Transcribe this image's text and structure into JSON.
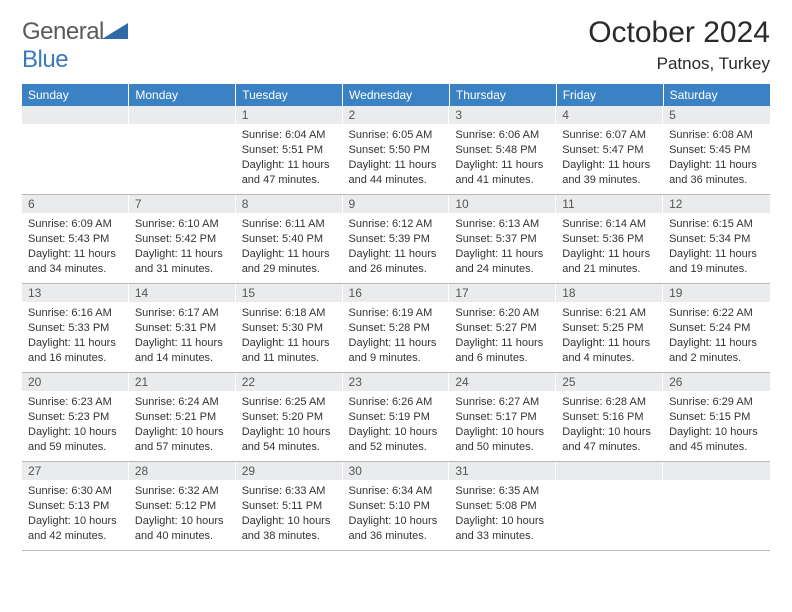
{
  "brand": {
    "part1": "General",
    "part2": "Blue"
  },
  "title": "October 2024",
  "location": "Patnos, Turkey",
  "colors": {
    "header_bg": "#3b82c4",
    "daynum_bg": "#e9ebed",
    "text": "#333333",
    "brand_gray": "#5a5a5a",
    "brand_blue": "#3a7ab8"
  },
  "weekdays": [
    "Sunday",
    "Monday",
    "Tuesday",
    "Wednesday",
    "Thursday",
    "Friday",
    "Saturday"
  ],
  "weeks": [
    [
      {
        "n": "",
        "lines": [
          "",
          "",
          "",
          ""
        ]
      },
      {
        "n": "",
        "lines": [
          "",
          "",
          "",
          ""
        ]
      },
      {
        "n": "1",
        "lines": [
          "Sunrise: 6:04 AM",
          "Sunset: 5:51 PM",
          "Daylight: 11 hours",
          "and 47 minutes."
        ]
      },
      {
        "n": "2",
        "lines": [
          "Sunrise: 6:05 AM",
          "Sunset: 5:50 PM",
          "Daylight: 11 hours",
          "and 44 minutes."
        ]
      },
      {
        "n": "3",
        "lines": [
          "Sunrise: 6:06 AM",
          "Sunset: 5:48 PM",
          "Daylight: 11 hours",
          "and 41 minutes."
        ]
      },
      {
        "n": "4",
        "lines": [
          "Sunrise: 6:07 AM",
          "Sunset: 5:47 PM",
          "Daylight: 11 hours",
          "and 39 minutes."
        ]
      },
      {
        "n": "5",
        "lines": [
          "Sunrise: 6:08 AM",
          "Sunset: 5:45 PM",
          "Daylight: 11 hours",
          "and 36 minutes."
        ]
      }
    ],
    [
      {
        "n": "6",
        "lines": [
          "Sunrise: 6:09 AM",
          "Sunset: 5:43 PM",
          "Daylight: 11 hours",
          "and 34 minutes."
        ]
      },
      {
        "n": "7",
        "lines": [
          "Sunrise: 6:10 AM",
          "Sunset: 5:42 PM",
          "Daylight: 11 hours",
          "and 31 minutes."
        ]
      },
      {
        "n": "8",
        "lines": [
          "Sunrise: 6:11 AM",
          "Sunset: 5:40 PM",
          "Daylight: 11 hours",
          "and 29 minutes."
        ]
      },
      {
        "n": "9",
        "lines": [
          "Sunrise: 6:12 AM",
          "Sunset: 5:39 PM",
          "Daylight: 11 hours",
          "and 26 minutes."
        ]
      },
      {
        "n": "10",
        "lines": [
          "Sunrise: 6:13 AM",
          "Sunset: 5:37 PM",
          "Daylight: 11 hours",
          "and 24 minutes."
        ]
      },
      {
        "n": "11",
        "lines": [
          "Sunrise: 6:14 AM",
          "Sunset: 5:36 PM",
          "Daylight: 11 hours",
          "and 21 minutes."
        ]
      },
      {
        "n": "12",
        "lines": [
          "Sunrise: 6:15 AM",
          "Sunset: 5:34 PM",
          "Daylight: 11 hours",
          "and 19 minutes."
        ]
      }
    ],
    [
      {
        "n": "13",
        "lines": [
          "Sunrise: 6:16 AM",
          "Sunset: 5:33 PM",
          "Daylight: 11 hours",
          "and 16 minutes."
        ]
      },
      {
        "n": "14",
        "lines": [
          "Sunrise: 6:17 AM",
          "Sunset: 5:31 PM",
          "Daylight: 11 hours",
          "and 14 minutes."
        ]
      },
      {
        "n": "15",
        "lines": [
          "Sunrise: 6:18 AM",
          "Sunset: 5:30 PM",
          "Daylight: 11 hours",
          "and 11 minutes."
        ]
      },
      {
        "n": "16",
        "lines": [
          "Sunrise: 6:19 AM",
          "Sunset: 5:28 PM",
          "Daylight: 11 hours",
          "and 9 minutes."
        ]
      },
      {
        "n": "17",
        "lines": [
          "Sunrise: 6:20 AM",
          "Sunset: 5:27 PM",
          "Daylight: 11 hours",
          "and 6 minutes."
        ]
      },
      {
        "n": "18",
        "lines": [
          "Sunrise: 6:21 AM",
          "Sunset: 5:25 PM",
          "Daylight: 11 hours",
          "and 4 minutes."
        ]
      },
      {
        "n": "19",
        "lines": [
          "Sunrise: 6:22 AM",
          "Sunset: 5:24 PM",
          "Daylight: 11 hours",
          "and 2 minutes."
        ]
      }
    ],
    [
      {
        "n": "20",
        "lines": [
          "Sunrise: 6:23 AM",
          "Sunset: 5:23 PM",
          "Daylight: 10 hours",
          "and 59 minutes."
        ]
      },
      {
        "n": "21",
        "lines": [
          "Sunrise: 6:24 AM",
          "Sunset: 5:21 PM",
          "Daylight: 10 hours",
          "and 57 minutes."
        ]
      },
      {
        "n": "22",
        "lines": [
          "Sunrise: 6:25 AM",
          "Sunset: 5:20 PM",
          "Daylight: 10 hours",
          "and 54 minutes."
        ]
      },
      {
        "n": "23",
        "lines": [
          "Sunrise: 6:26 AM",
          "Sunset: 5:19 PM",
          "Daylight: 10 hours",
          "and 52 minutes."
        ]
      },
      {
        "n": "24",
        "lines": [
          "Sunrise: 6:27 AM",
          "Sunset: 5:17 PM",
          "Daylight: 10 hours",
          "and 50 minutes."
        ]
      },
      {
        "n": "25",
        "lines": [
          "Sunrise: 6:28 AM",
          "Sunset: 5:16 PM",
          "Daylight: 10 hours",
          "and 47 minutes."
        ]
      },
      {
        "n": "26",
        "lines": [
          "Sunrise: 6:29 AM",
          "Sunset: 5:15 PM",
          "Daylight: 10 hours",
          "and 45 minutes."
        ]
      }
    ],
    [
      {
        "n": "27",
        "lines": [
          "Sunrise: 6:30 AM",
          "Sunset: 5:13 PM",
          "Daylight: 10 hours",
          "and 42 minutes."
        ]
      },
      {
        "n": "28",
        "lines": [
          "Sunrise: 6:32 AM",
          "Sunset: 5:12 PM",
          "Daylight: 10 hours",
          "and 40 minutes."
        ]
      },
      {
        "n": "29",
        "lines": [
          "Sunrise: 6:33 AM",
          "Sunset: 5:11 PM",
          "Daylight: 10 hours",
          "and 38 minutes."
        ]
      },
      {
        "n": "30",
        "lines": [
          "Sunrise: 6:34 AM",
          "Sunset: 5:10 PM",
          "Daylight: 10 hours",
          "and 36 minutes."
        ]
      },
      {
        "n": "31",
        "lines": [
          "Sunrise: 6:35 AM",
          "Sunset: 5:08 PM",
          "Daylight: 10 hours",
          "and 33 minutes."
        ]
      },
      {
        "n": "",
        "lines": [
          "",
          "",
          "",
          ""
        ]
      },
      {
        "n": "",
        "lines": [
          "",
          "",
          "",
          ""
        ]
      }
    ]
  ]
}
